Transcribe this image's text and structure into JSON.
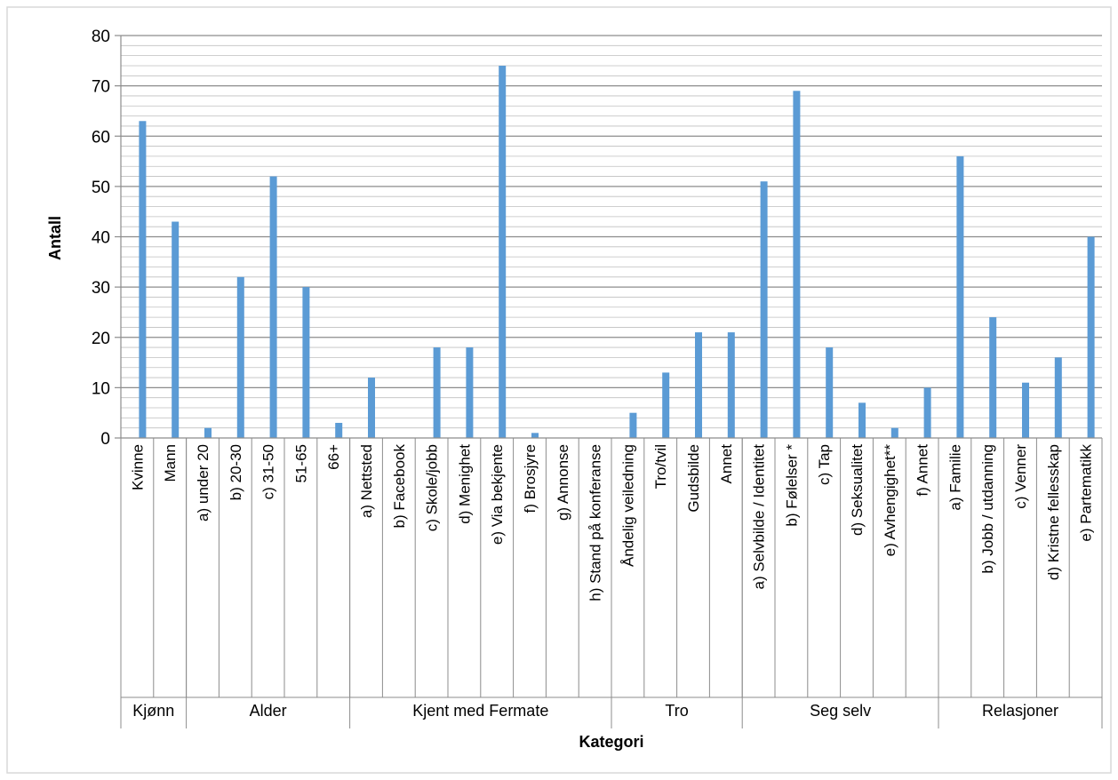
{
  "chart_data": {
    "type": "bar",
    "title": "",
    "xlabel": "Kategori",
    "ylabel": "Antall",
    "ylim": [
      0,
      80
    ],
    "yticks": [
      0,
      10,
      20,
      30,
      40,
      50,
      60,
      70,
      80
    ],
    "grid": true,
    "legend": "none",
    "bar_color": "#5B9BD5",
    "groups": [
      {
        "name": "Kjønn",
        "categories": [
          "Kvinne",
          "Mann"
        ],
        "values": [
          63,
          43
        ]
      },
      {
        "name": "Alder",
        "categories": [
          "a) under 20",
          "b) 20-30",
          "c) 31-50",
          "51-65",
          "66+"
        ],
        "values": [
          2,
          32,
          52,
          30,
          3
        ]
      },
      {
        "name": "Kjent med Fermate",
        "categories": [
          "a) Nettsted",
          "b) Facebook",
          "c) Skole/jobb",
          "d) Menighet",
          "e) Via bekjente",
          "f) Brosjyre",
          "g) Annonse",
          "h) Stand på konferanse"
        ],
        "values": [
          12,
          0,
          18,
          18,
          74,
          1,
          0,
          0
        ]
      },
      {
        "name": "Tro",
        "categories": [
          "Åndelig veiledning",
          "Tro/tvil",
          "Gudsbilde",
          "Annet"
        ],
        "values": [
          5,
          13,
          21,
          21
        ]
      },
      {
        "name": "Seg selv",
        "categories": [
          "a) Selvbilde / Identitet",
          "b) Følelser *",
          "c) Tap",
          "d) Seksualitet",
          "e) Avhengighet**",
          "f) Annet"
        ],
        "values": [
          51,
          69,
          18,
          7,
          2,
          10
        ]
      },
      {
        "name": "Relasjoner",
        "categories": [
          "a) Familie",
          "b) Jobb / utdanning",
          "c) Venner",
          "d) Kristne fellesskap",
          "e) Partematikk"
        ],
        "values": [
          56,
          24,
          11,
          16,
          40
        ]
      }
    ]
  }
}
